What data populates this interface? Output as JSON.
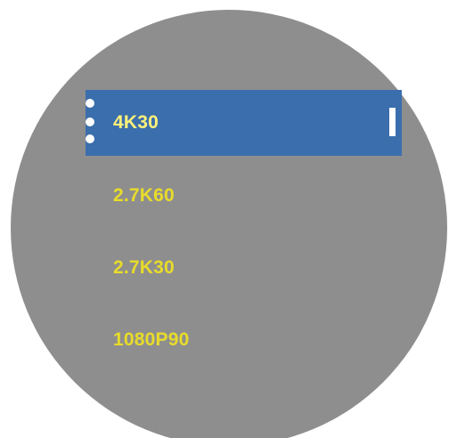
{
  "menu": {
    "items": [
      {
        "label": "4K30",
        "selected": true
      },
      {
        "label": "2.7K60",
        "selected": false
      },
      {
        "label": "2.7K30",
        "selected": false
      },
      {
        "label": "1080P90",
        "selected": false
      }
    ]
  },
  "colors": {
    "dial_background": "#8e8e8e",
    "selection_highlight": "#3b6eac",
    "label_text": "#e8dc2a",
    "selected_label_text": "#fff17a",
    "indicator": "#ffffff"
  },
  "icons": {
    "options": "more-vertical-icon"
  }
}
